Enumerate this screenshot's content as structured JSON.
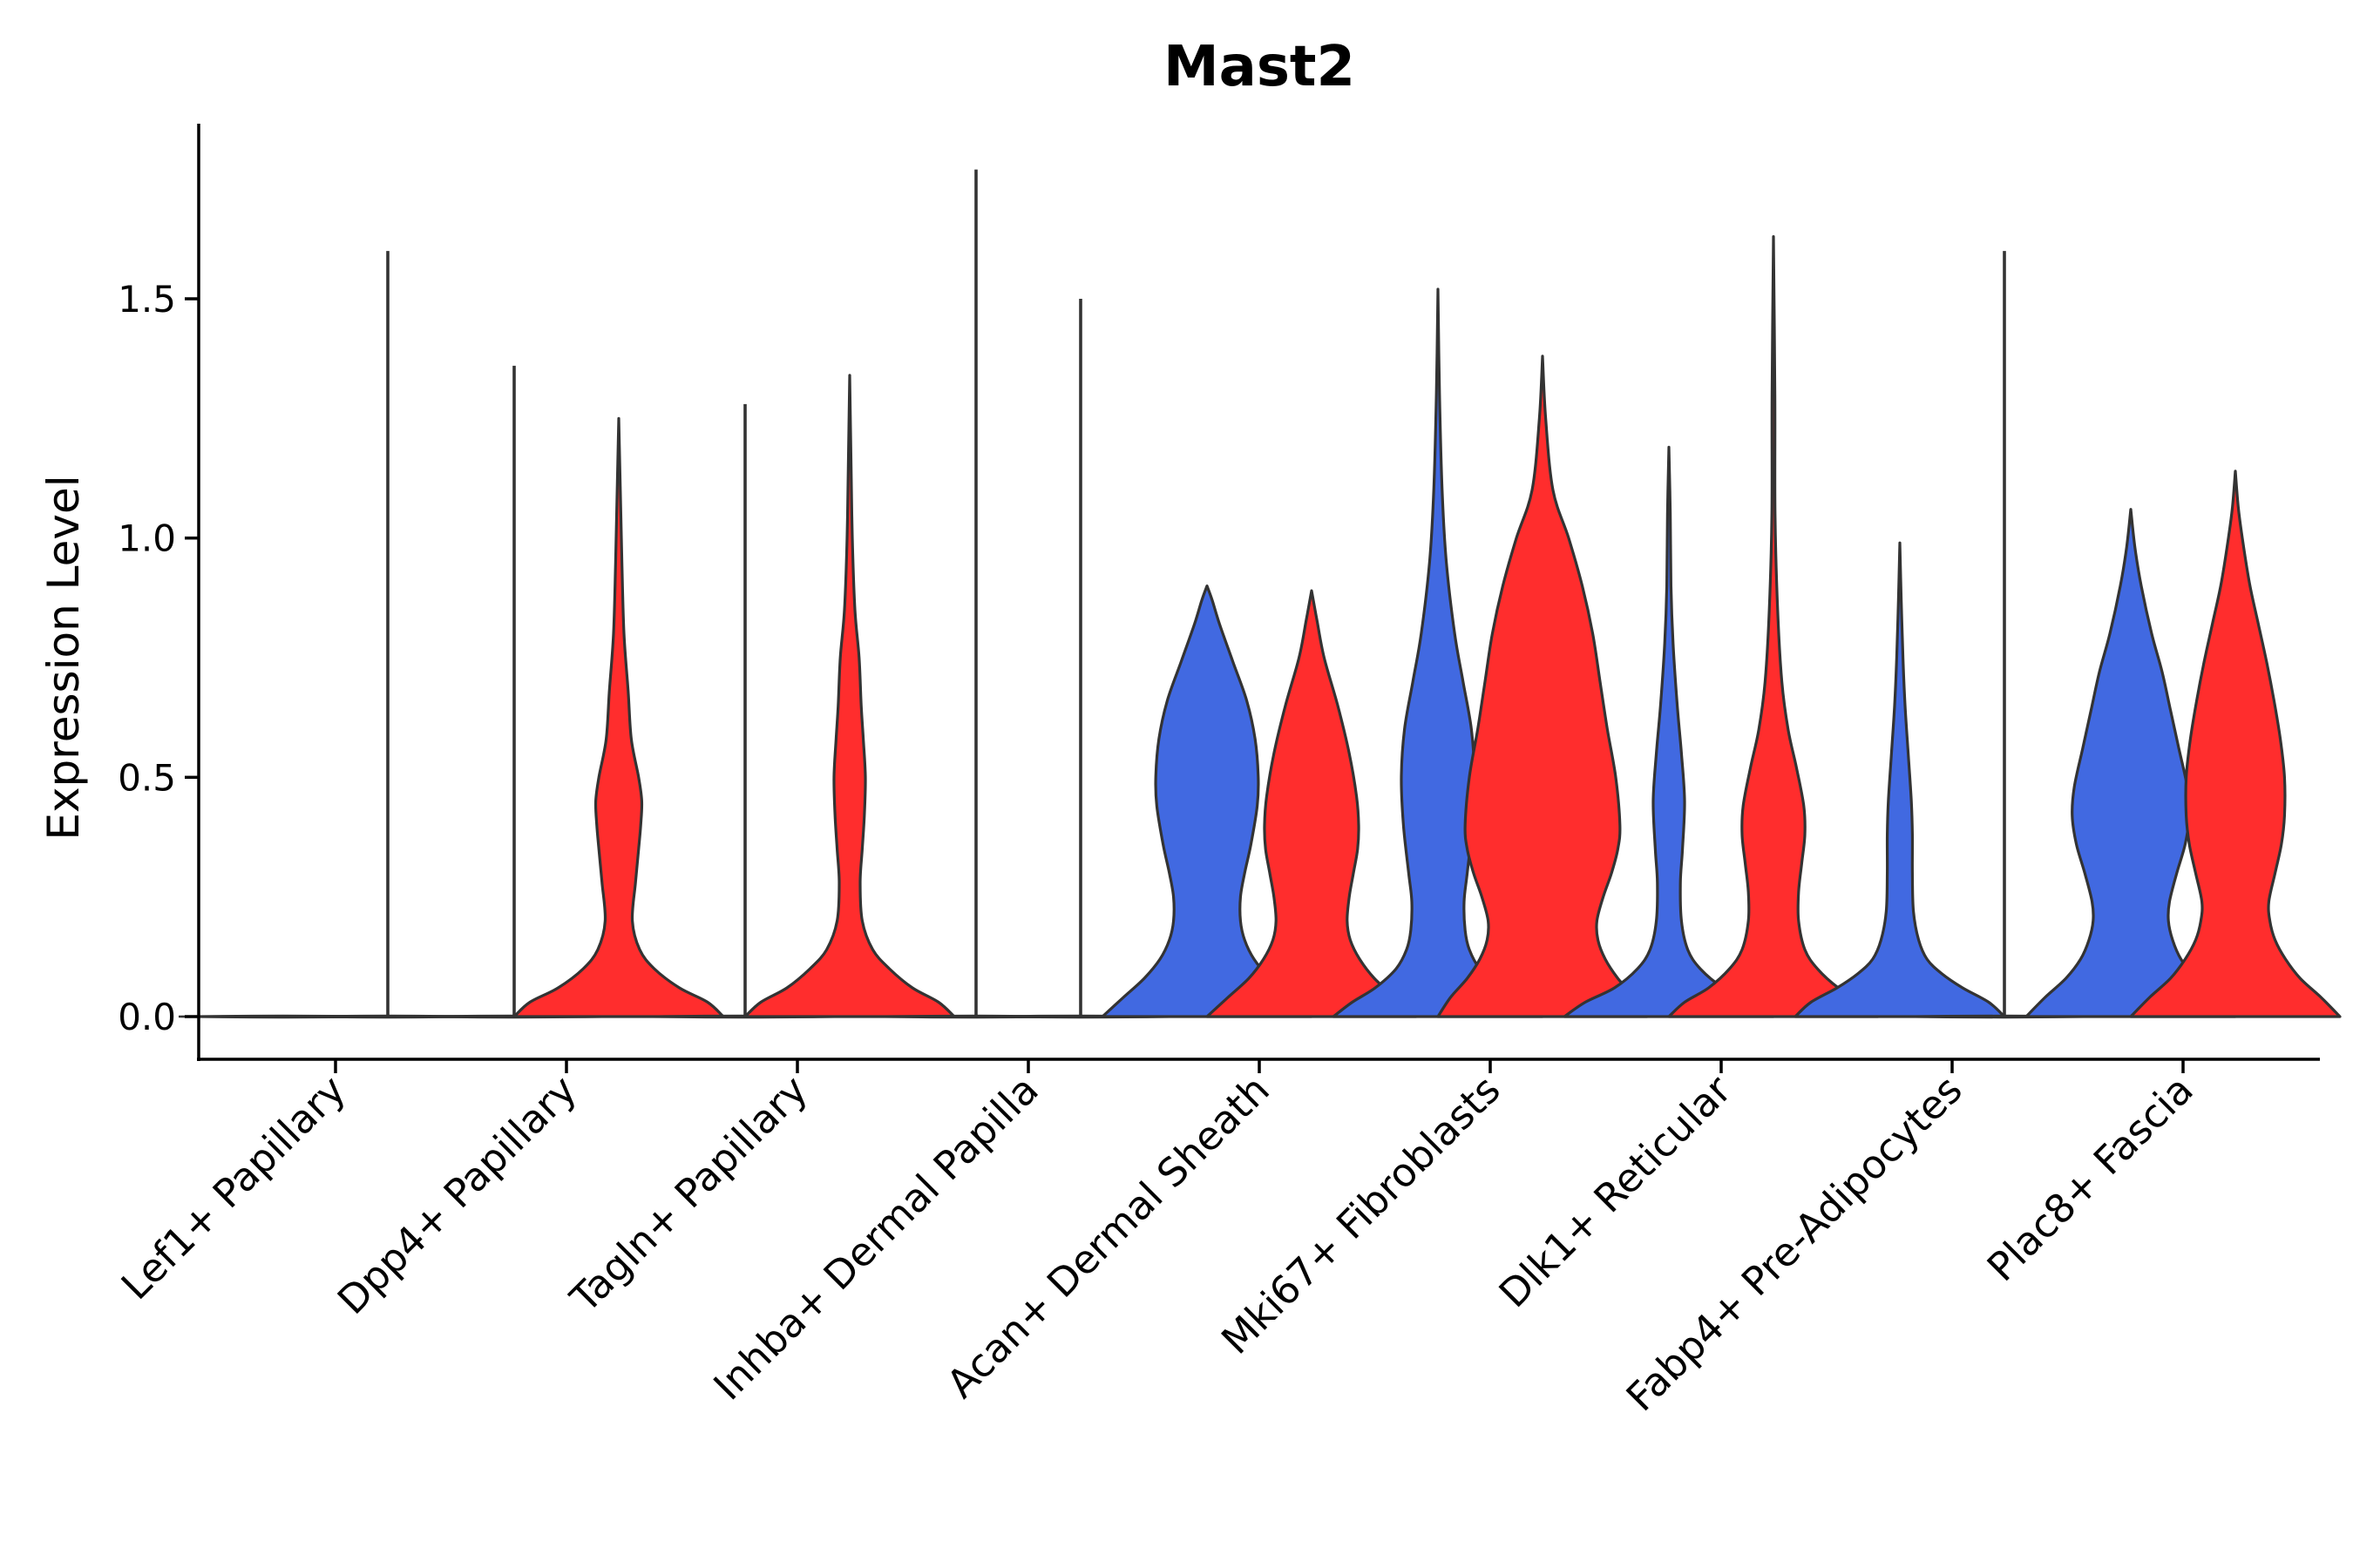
{
  "chart_data": {
    "type": "violin",
    "title": "Mast2",
    "xlabel": "",
    "ylabel": "Expression Level",
    "ylim": [
      -0.09,
      1.87
    ],
    "yticks": [
      "0.0",
      "0.5",
      "1.0",
      "1.5"
    ],
    "grid": false,
    "legend": "none",
    "split_colors": [
      "#4169E1",
      "#FF2D2D"
    ],
    "categories": [
      "Lef1+ Papillary",
      "Dpp4+ Papillary",
      "Tagln+ Papillary",
      "Inhba+ Dermal Papilla",
      "Acan+ Dermal Sheath",
      "Mki67+ Fibroblasts",
      "Dlk1+ Reticular",
      "Fabp4+ Pre-Adipocytes",
      "Plac8+ Fascia"
    ],
    "violins": [
      {
        "category": 0,
        "side": "left",
        "color": "#4169E1",
        "max": 0.0,
        "profile": []
      },
      {
        "category": 0,
        "side": "right",
        "color": "#FF2D2D",
        "max": 1.6,
        "profile": []
      },
      {
        "category": 1,
        "side": "left",
        "color": "#4169E1",
        "max": 1.36,
        "profile": []
      },
      {
        "category": 1,
        "side": "right",
        "color": "#FF2D2D",
        "max": 1.25,
        "profile": [
          [
            0,
            1.0
          ],
          [
            0.03,
            0.85
          ],
          [
            0.06,
            0.58
          ],
          [
            0.1,
            0.34
          ],
          [
            0.14,
            0.2
          ],
          [
            0.2,
            0.13
          ],
          [
            0.28,
            0.16
          ],
          [
            0.35,
            0.19
          ],
          [
            0.4,
            0.21
          ],
          [
            0.45,
            0.22
          ],
          [
            0.5,
            0.19
          ],
          [
            0.58,
            0.12
          ],
          [
            0.68,
            0.09
          ],
          [
            0.8,
            0.05
          ],
          [
            0.95,
            0.03
          ],
          [
            1.1,
            0.015
          ],
          [
            1.25,
            0.0
          ]
        ]
      },
      {
        "category": 2,
        "side": "left",
        "color": "#4169E1",
        "max": 1.28,
        "profile": []
      },
      {
        "category": 2,
        "side": "right",
        "color": "#FF2D2D",
        "max": 1.34,
        "profile": [
          [
            0,
            1.0
          ],
          [
            0.03,
            0.85
          ],
          [
            0.06,
            0.6
          ],
          [
            0.1,
            0.38
          ],
          [
            0.14,
            0.22
          ],
          [
            0.2,
            0.12
          ],
          [
            0.28,
            0.1
          ],
          [
            0.35,
            0.12
          ],
          [
            0.42,
            0.14
          ],
          [
            0.5,
            0.15
          ],
          [
            0.58,
            0.13
          ],
          [
            0.65,
            0.11
          ],
          [
            0.75,
            0.09
          ],
          [
            0.85,
            0.05
          ],
          [
            1.0,
            0.025
          ],
          [
            1.15,
            0.012
          ],
          [
            1.34,
            0.0
          ]
        ]
      },
      {
        "category": 3,
        "side": "left",
        "color": "#4169E1",
        "max": 1.77,
        "profile": []
      },
      {
        "category": 3,
        "side": "right",
        "color": "#FF2D2D",
        "max": 1.5,
        "profile": []
      },
      {
        "category": 4,
        "side": "left",
        "color": "#4169E1",
        "max": 0.9,
        "profile": [
          [
            0,
            1.0
          ],
          [
            0.04,
            0.8
          ],
          [
            0.08,
            0.6
          ],
          [
            0.12,
            0.45
          ],
          [
            0.16,
            0.36
          ],
          [
            0.2,
            0.32
          ],
          [
            0.25,
            0.32
          ],
          [
            0.3,
            0.36
          ],
          [
            0.36,
            0.42
          ],
          [
            0.44,
            0.48
          ],
          [
            0.5,
            0.49
          ],
          [
            0.58,
            0.46
          ],
          [
            0.66,
            0.38
          ],
          [
            0.74,
            0.25
          ],
          [
            0.82,
            0.12
          ],
          [
            0.87,
            0.05
          ],
          [
            0.9,
            0.0
          ]
        ]
      },
      {
        "category": 4,
        "side": "right",
        "color": "#FF2D2D",
        "max": 0.89,
        "profile": [
          [
            0,
            1.0
          ],
          [
            0.04,
            0.8
          ],
          [
            0.08,
            0.6
          ],
          [
            0.12,
            0.46
          ],
          [
            0.16,
            0.37
          ],
          [
            0.2,
            0.34
          ],
          [
            0.25,
            0.36
          ],
          [
            0.3,
            0.4
          ],
          [
            0.35,
            0.44
          ],
          [
            0.4,
            0.45
          ],
          [
            0.46,
            0.43
          ],
          [
            0.55,
            0.36
          ],
          [
            0.65,
            0.25
          ],
          [
            0.75,
            0.12
          ],
          [
            0.83,
            0.05
          ],
          [
            0.89,
            0.0
          ]
        ]
      },
      {
        "category": 5,
        "side": "left",
        "color": "#4169E1",
        "max": 1.52,
        "profile": [
          [
            0,
            1.0
          ],
          [
            0.03,
            0.82
          ],
          [
            0.06,
            0.6
          ],
          [
            0.1,
            0.4
          ],
          [
            0.14,
            0.3
          ],
          [
            0.18,
            0.26
          ],
          [
            0.24,
            0.25
          ],
          [
            0.3,
            0.28
          ],
          [
            0.4,
            0.33
          ],
          [
            0.5,
            0.35
          ],
          [
            0.6,
            0.32
          ],
          [
            0.7,
            0.24
          ],
          [
            0.8,
            0.16
          ],
          [
            0.95,
            0.08
          ],
          [
            1.1,
            0.04
          ],
          [
            1.3,
            0.015
          ],
          [
            1.52,
            0.0
          ]
        ]
      },
      {
        "category": 5,
        "side": "right",
        "color": "#FF2D2D",
        "max": 1.38,
        "profile": [
          [
            0,
            1.0
          ],
          [
            0.04,
            0.88
          ],
          [
            0.08,
            0.72
          ],
          [
            0.12,
            0.6
          ],
          [
            0.16,
            0.53
          ],
          [
            0.2,
            0.52
          ],
          [
            0.25,
            0.58
          ],
          [
            0.3,
            0.66
          ],
          [
            0.35,
            0.72
          ],
          [
            0.4,
            0.74
          ],
          [
            0.5,
            0.7
          ],
          [
            0.6,
            0.62
          ],
          [
            0.7,
            0.55
          ],
          [
            0.8,
            0.48
          ],
          [
            0.9,
            0.38
          ],
          [
            1.0,
            0.25
          ],
          [
            1.1,
            0.1
          ],
          [
            1.25,
            0.03
          ],
          [
            1.38,
            0.0
          ]
        ]
      },
      {
        "category": 6,
        "side": "left",
        "color": "#4169E1",
        "max": 1.19,
        "profile": [
          [
            0,
            1.0
          ],
          [
            0.03,
            0.8
          ],
          [
            0.06,
            0.52
          ],
          [
            0.1,
            0.3
          ],
          [
            0.14,
            0.18
          ],
          [
            0.2,
            0.12
          ],
          [
            0.28,
            0.11
          ],
          [
            0.35,
            0.13
          ],
          [
            0.45,
            0.15
          ],
          [
            0.55,
            0.12
          ],
          [
            0.65,
            0.08
          ],
          [
            0.78,
            0.04
          ],
          [
            0.9,
            0.02
          ],
          [
            1.05,
            0.01
          ],
          [
            1.19,
            0.0
          ]
        ]
      },
      {
        "category": 6,
        "side": "right",
        "color": "#FF2D2D",
        "max": 1.63,
        "profile": [
          [
            0,
            1.0
          ],
          [
            0.03,
            0.85
          ],
          [
            0.06,
            0.62
          ],
          [
            0.1,
            0.42
          ],
          [
            0.14,
            0.3
          ],
          [
            0.2,
            0.24
          ],
          [
            0.26,
            0.24
          ],
          [
            0.32,
            0.27
          ],
          [
            0.38,
            0.3
          ],
          [
            0.44,
            0.29
          ],
          [
            0.52,
            0.22
          ],
          [
            0.6,
            0.14
          ],
          [
            0.7,
            0.08
          ],
          [
            0.85,
            0.04
          ],
          [
            1.05,
            0.015
          ],
          [
            1.3,
            0.005
          ],
          [
            1.63,
            0.0
          ]
        ]
      },
      {
        "category": 7,
        "side": "left",
        "color": "#4169E1",
        "max": 0.99,
        "profile": [
          [
            0,
            1.0
          ],
          [
            0.03,
            0.85
          ],
          [
            0.06,
            0.6
          ],
          [
            0.09,
            0.4
          ],
          [
            0.12,
            0.26
          ],
          [
            0.16,
            0.18
          ],
          [
            0.22,
            0.13
          ],
          [
            0.3,
            0.12
          ],
          [
            0.38,
            0.12
          ],
          [
            0.45,
            0.11
          ],
          [
            0.55,
            0.08
          ],
          [
            0.65,
            0.05
          ],
          [
            0.75,
            0.03
          ],
          [
            0.87,
            0.01
          ],
          [
            0.99,
            0.0
          ]
        ]
      },
      {
        "category": 7,
        "side": "right",
        "color": "#FF2D2D",
        "max": 1.6,
        "profile": []
      },
      {
        "category": 8,
        "side": "left",
        "color": "#4169E1",
        "max": 1.06,
        "profile": [
          [
            0,
            1.0
          ],
          [
            0.04,
            0.82
          ],
          [
            0.08,
            0.62
          ],
          [
            0.12,
            0.48
          ],
          [
            0.16,
            0.4
          ],
          [
            0.2,
            0.36
          ],
          [
            0.24,
            0.37
          ],
          [
            0.3,
            0.44
          ],
          [
            0.36,
            0.52
          ],
          [
            0.42,
            0.56
          ],
          [
            0.48,
            0.54
          ],
          [
            0.56,
            0.46
          ],
          [
            0.64,
            0.38
          ],
          [
            0.72,
            0.3
          ],
          [
            0.8,
            0.2
          ],
          [
            0.9,
            0.1
          ],
          [
            0.98,
            0.04
          ],
          [
            1.06,
            0.0
          ]
        ]
      },
      {
        "category": 8,
        "side": "right",
        "color": "#FF2D2D",
        "max": 1.14,
        "profile": [
          [
            0,
            1.0
          ],
          [
            0.04,
            0.82
          ],
          [
            0.08,
            0.62
          ],
          [
            0.12,
            0.48
          ],
          [
            0.16,
            0.38
          ],
          [
            0.2,
            0.33
          ],
          [
            0.24,
            0.32
          ],
          [
            0.3,
            0.38
          ],
          [
            0.36,
            0.44
          ],
          [
            0.42,
            0.47
          ],
          [
            0.5,
            0.47
          ],
          [
            0.58,
            0.43
          ],
          [
            0.66,
            0.37
          ],
          [
            0.74,
            0.3
          ],
          [
            0.82,
            0.22
          ],
          [
            0.9,
            0.14
          ],
          [
            0.98,
            0.08
          ],
          [
            1.06,
            0.03
          ],
          [
            1.14,
            0.0
          ]
        ]
      }
    ]
  }
}
